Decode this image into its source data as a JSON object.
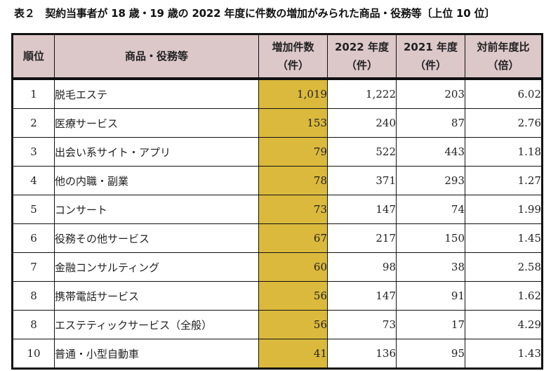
{
  "title": "表２　契約当事者が 18 歳・19 歳の 2022 年度に件数の増加がみられた商品・役務等〔上位 10 位〕",
  "colors": {
    "header_bg": "#dcc7c9",
    "highlight_col": "#dbb93c"
  },
  "table": {
    "headers": [
      {
        "line1": "順位",
        "line2": ""
      },
      {
        "line1": "商品・役務等",
        "line2": ""
      },
      {
        "line1": "増加件数",
        "line2": "（件）"
      },
      {
        "line1": "2022 年度",
        "line2": "（件）"
      },
      {
        "line1": "2021 年度",
        "line2": "（件）"
      },
      {
        "line1": "対前年度比",
        "line2": "（倍）"
      }
    ],
    "rows": [
      {
        "rank": "1",
        "item": "脱毛エステ",
        "increase": "1,019",
        "fy2022": "1,222",
        "fy2021": "203",
        "ratio": "6.02"
      },
      {
        "rank": "2",
        "item": "医療サービス",
        "increase": "153",
        "fy2022": "240",
        "fy2021": "87",
        "ratio": "2.76"
      },
      {
        "rank": "3",
        "item": "出会い系サイト・アプリ",
        "increase": "79",
        "fy2022": "522",
        "fy2021": "443",
        "ratio": "1.18"
      },
      {
        "rank": "4",
        "item": "他の内職・副業",
        "increase": "78",
        "fy2022": "371",
        "fy2021": "293",
        "ratio": "1.27"
      },
      {
        "rank": "5",
        "item": "コンサート",
        "increase": "73",
        "fy2022": "147",
        "fy2021": "74",
        "ratio": "1.99"
      },
      {
        "rank": "6",
        "item": "役務その他サービス",
        "increase": "67",
        "fy2022": "217",
        "fy2021": "150",
        "ratio": "1.45"
      },
      {
        "rank": "7",
        "item": "金融コンサルティング",
        "increase": "60",
        "fy2022": "98",
        "fy2021": "38",
        "ratio": "2.58"
      },
      {
        "rank": "8",
        "item": "携帯電話サービス",
        "increase": "56",
        "fy2022": "147",
        "fy2021": "91",
        "ratio": "1.62"
      },
      {
        "rank": "8",
        "item": "エステティックサービス（全般）",
        "increase": "56",
        "fy2022": "73",
        "fy2021": "17",
        "ratio": "4.29"
      },
      {
        "rank": "10",
        "item": "普通・小型自動車",
        "increase": "41",
        "fy2022": "136",
        "fy2021": "95",
        "ratio": "1.43"
      }
    ]
  }
}
